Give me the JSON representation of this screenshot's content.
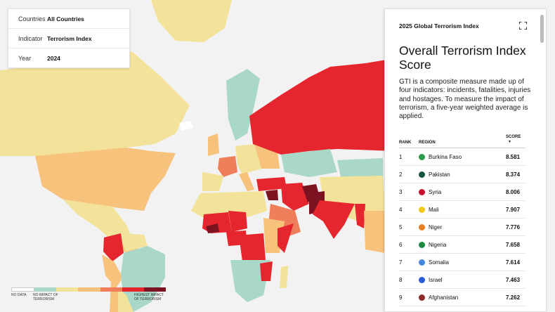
{
  "filters": [
    {
      "key": "Countries",
      "value": "All Countries"
    },
    {
      "key": "Indicator",
      "value": "Terrorism Index"
    },
    {
      "key": "Year",
      "value": "2024"
    }
  ],
  "legend": {
    "colors": [
      "#ffffff",
      "#a9d8c8",
      "#f3e39a",
      "#f7c27c",
      "#ee7f5a",
      "#e5262e",
      "#7d1221"
    ],
    "no_data": "NO DATA",
    "no_impact": "NO IMPACT OF TERRORISM",
    "highest_impact": "HIGHEST IMPACT OF TERRORISM"
  },
  "panel": {
    "header": "2025 Global Terrorism Index",
    "title": "Overall Terrorism Index Score",
    "description": "GTI is a composite measure made up of four indicators: incidents, fatalities, injuries and hostages. To measure the impact of terrorism, a five-year weighted average is applied.",
    "columns": {
      "rank": "RANK",
      "region": "REGION",
      "score": "SCORE"
    },
    "sort_icon": "sort-down-icon",
    "rows": [
      {
        "rank": "1",
        "region": "Burkina Faso",
        "score": "8.581",
        "flag": "#2e9b48"
      },
      {
        "rank": "2",
        "region": "Pakistan",
        "score": "8.374",
        "flag": "#115740"
      },
      {
        "rank": "3",
        "region": "Syria",
        "score": "8.006",
        "flag": "#c8102e"
      },
      {
        "rank": "4",
        "region": "Mali",
        "score": "7.907",
        "flag": "#f2c81a"
      },
      {
        "rank": "5",
        "region": "Niger",
        "score": "7.776",
        "flag": "#e87e22"
      },
      {
        "rank": "6",
        "region": "Nigeria",
        "score": "7.658",
        "flag": "#1a8a3e"
      },
      {
        "rank": "7",
        "region": "Somalia",
        "score": "7.614",
        "flag": "#4189dd"
      },
      {
        "rank": "8",
        "region": "Israel",
        "score": "7.463",
        "flag": "#2a5bd7"
      },
      {
        "rank": "9",
        "region": "Afghanistan",
        "score": "7.262",
        "flag": "#8a2a2a"
      }
    ]
  }
}
